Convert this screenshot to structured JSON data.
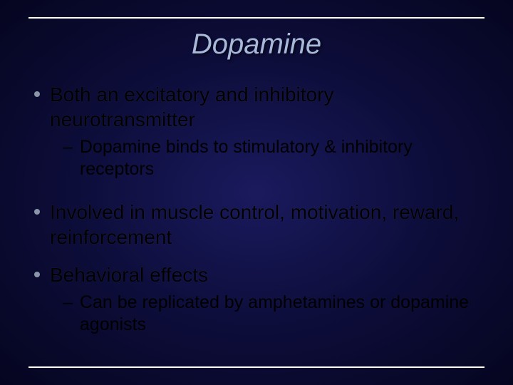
{
  "title": "Dopamine",
  "colors": {
    "background_center": "#1a1a5e",
    "background_mid": "#0d0d3a",
    "background_edge": "#050520",
    "title_color": "#a8b8d8",
    "rule_color": "#ffffff",
    "bullet_dot_color": "#8a96a8",
    "body_text_color": "#000000"
  },
  "typography": {
    "title_fontsize": 40,
    "title_style": "italic",
    "l1_fontsize": 28,
    "l2_fontsize": 25,
    "font_family": "Arial"
  },
  "bullets": [
    {
      "text": "Both an excitatory and inhibitory neurotransmitter",
      "sub": [
        "Dopamine binds to stimulatory & inhibitory receptors"
      ]
    },
    {
      "text": "Involved in muscle control, motivation, reward, reinforcement",
      "sub": []
    },
    {
      "text": "Behavioral effects",
      "sub": [
        "Can be replicated by amphetamines or dopamine agonists"
      ]
    }
  ]
}
